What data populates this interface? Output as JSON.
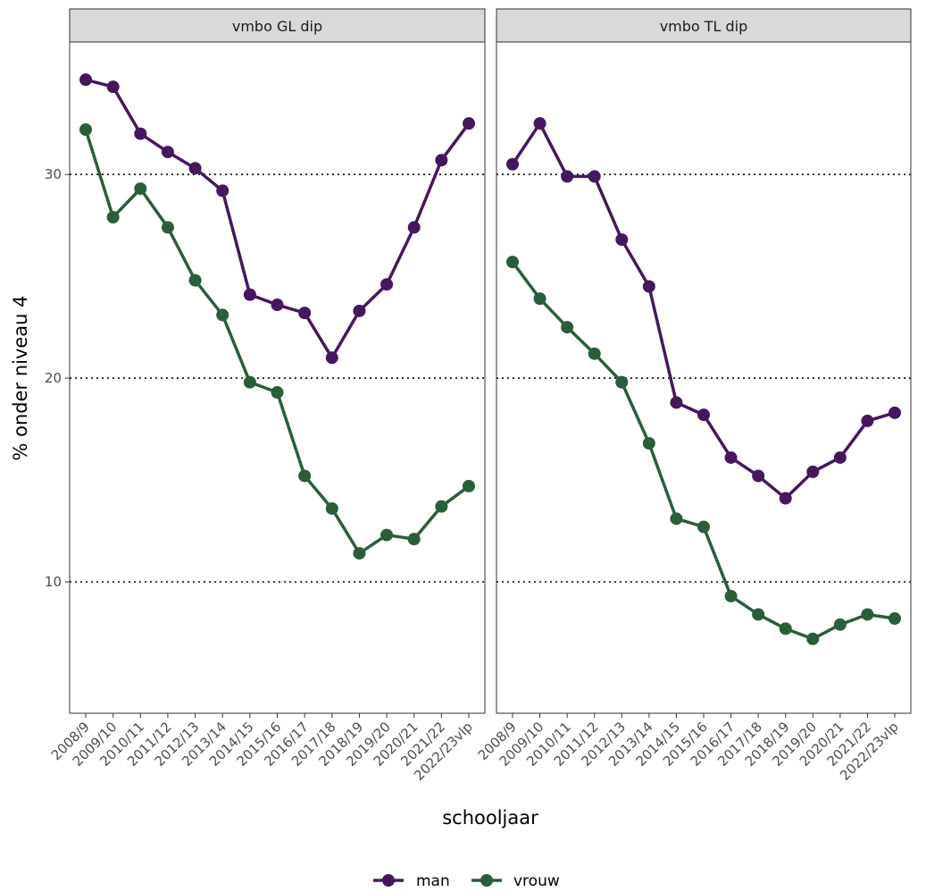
{
  "chart_data": {
    "type": "line",
    "xlabel": "schooljaar",
    "ylabel": "% onder niveau 4",
    "ylim": [
      3.55,
      36.5
    ],
    "yticks": [
      10,
      20,
      30
    ],
    "grid": "dotted",
    "categories": [
      "2008/9",
      "2009/10",
      "2010/11",
      "2011/12",
      "2012/13",
      "2013/14",
      "2014/15",
      "2015/16",
      "2016/17",
      "2017/18",
      "2018/19",
      "2019/20",
      "2020/21",
      "2021/22",
      "2022/23vlp"
    ],
    "panels": [
      {
        "title": "vmbo GL dip",
        "series": [
          {
            "name": "man",
            "color": "#45185e",
            "values": [
              34.65,
              34.3,
              32.0,
              31.1,
              30.3,
              29.2,
              24.1,
              23.6,
              23.2,
              21.0,
              23.3,
              24.6,
              27.4,
              30.7,
              32.5
            ]
          },
          {
            "name": "vrouw",
            "color": "#2a5e3a",
            "values": [
              32.2,
              27.9,
              29.3,
              27.4,
              24.8,
              23.1,
              19.8,
              19.3,
              15.2,
              13.6,
              11.4,
              12.3,
              12.1,
              13.7,
              14.7
            ]
          }
        ]
      },
      {
        "title": "vmbo TL dip",
        "series": [
          {
            "name": "man",
            "color": "#45185e",
            "values": [
              30.5,
              32.5,
              29.9,
              29.9,
              26.8,
              24.5,
              18.8,
              18.2,
              16.1,
              15.2,
              14.1,
              15.4,
              16.1,
              17.9,
              18.3
            ]
          },
          {
            "name": "vrouw",
            "color": "#2a5e3a",
            "values": [
              25.7,
              23.9,
              22.5,
              21.2,
              19.8,
              16.8,
              13.1,
              12.7,
              9.3,
              8.4,
              7.7,
              7.2,
              7.9,
              8.4,
              8.2
            ]
          }
        ]
      }
    ]
  }
}
